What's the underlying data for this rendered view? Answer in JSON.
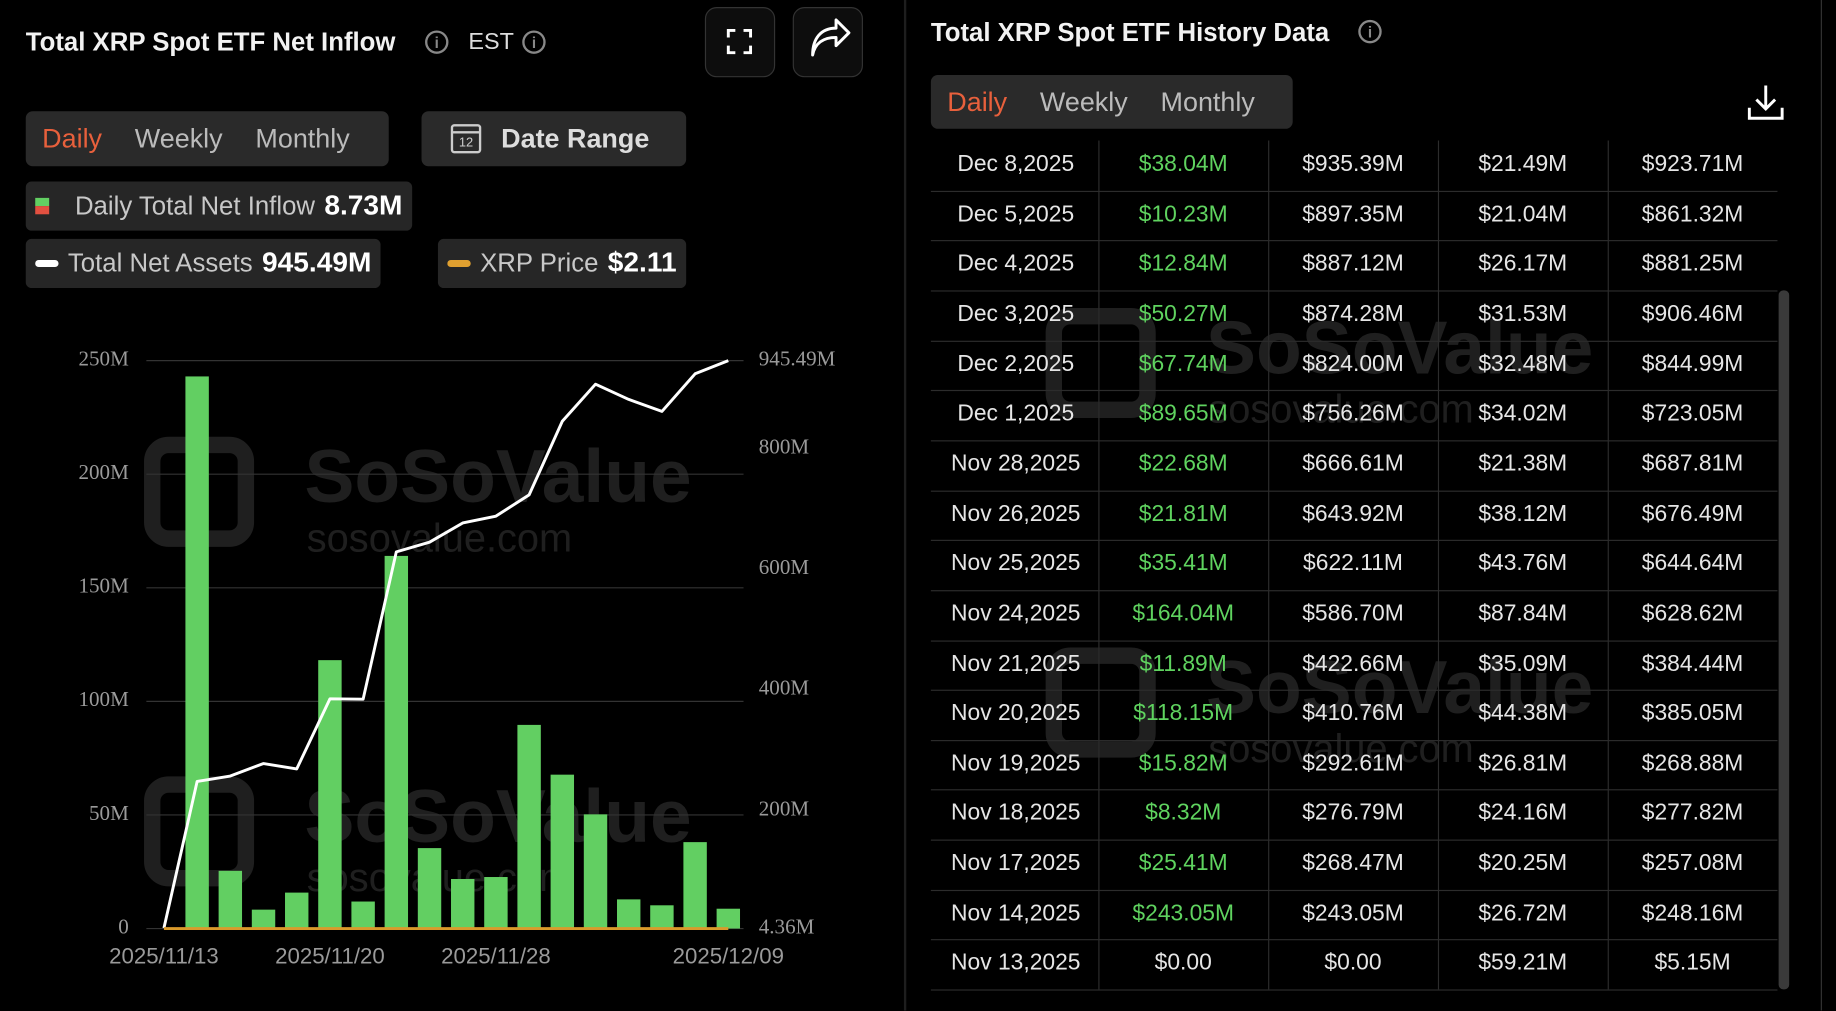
{
  "header": {
    "title": "Total XRP Spot ETF Net Inflow",
    "timezone": "EST",
    "tabs": [
      "Daily",
      "Weekly",
      "Monthly"
    ],
    "date_range": "Date Range"
  },
  "legend": {
    "inflow_value": "8.73M",
    "assets_value": "945.49M",
    "price_name": "XRP Price",
    "price_value": "$2.11"
  },
  "watermark": {
    "brand": "SoSoValue",
    "url": "sosovalue.com"
  },
  "chart_data": {
    "type": "bar",
    "categories": [
      "2025/11/13",
      null,
      null,
      null,
      null,
      "2025/11/20",
      null,
      null,
      null,
      null,
      "2025/11/28",
      null,
      null,
      null,
      null,
      null,
      null,
      "2025/12/09"
    ],
    "series": [
      {
        "name": "Daily Total Net Inflow",
        "color": "#62cf62",
        "values": [
          0,
          243.05,
          25.41,
          8.32,
          15.82,
          118.15,
          11.89,
          164.04,
          35.41,
          21.81,
          22.68,
          89.65,
          67.74,
          50.27,
          12.84,
          10.23,
          38.04,
          8.73
        ]
      },
      {
        "name": "Total Net Assets",
        "color": "#ffffff",
        "type": "line",
        "axis": "y2",
        "values": [
          5.15,
          248.16,
          257.08,
          277.82,
          268.88,
          385.05,
          384.44,
          628.62,
          644.64,
          676.49,
          687.81,
          723.05,
          844.99,
          906.46,
          881.25,
          861.32,
          923.71,
          945.49
        ]
      }
    ],
    "ylim": [
      0,
      250
    ],
    "yticks": [
      0,
      {
        "value": 50,
        "label": "50M"
      },
      {
        "value": 100,
        "label": "100M"
      },
      {
        "value": 150,
        "label": "150M"
      },
      {
        "value": 200,
        "label": "200M"
      },
      {
        "value": 250,
        "label": "250M"
      }
    ],
    "y2lim": [
      4.36,
      945.49
    ],
    "y2ticks": [
      {
        "value": 4.36,
        "label": "4.36M"
      },
      {
        "value": 200,
        "label": "200M"
      },
      {
        "value": 400,
        "label": "400M"
      },
      {
        "value": 600,
        "label": "600M"
      },
      {
        "value": 800,
        "label": "800M"
      },
      {
        "value": 945.49,
        "label": "945.49M"
      }
    ],
    "grid": true
  },
  "history": {
    "title": "Total XRP Spot ETF History Data",
    "tabs": [
      "Daily",
      "Weekly",
      "Monthly"
    ],
    "rows": [
      [
        "Dec 8,2025",
        "$38.04M",
        "$935.39M",
        "$21.49M",
        "$923.71M"
      ],
      [
        "Dec 5,2025",
        "$10.23M",
        "$897.35M",
        "$21.04M",
        "$861.32M"
      ],
      [
        "Dec 4,2025",
        "$12.84M",
        "$887.12M",
        "$26.17M",
        "$881.25M"
      ],
      [
        "Dec 3,2025",
        "$50.27M",
        "$874.28M",
        "$31.53M",
        "$906.46M"
      ],
      [
        "Dec 2,2025",
        "$67.74M",
        "$824.00M",
        "$32.48M",
        "$844.99M"
      ],
      [
        "Dec 1,2025",
        "$89.65M",
        "$756.26M",
        "$34.02M",
        "$723.05M"
      ],
      [
        "Nov 28,2025",
        "$22.68M",
        "$666.61M",
        "$21.38M",
        "$687.81M"
      ],
      [
        "Nov 26,2025",
        "$21.81M",
        "$643.92M",
        "$38.12M",
        "$676.49M"
      ],
      [
        "Nov 25,2025",
        "$35.41M",
        "$622.11M",
        "$43.76M",
        "$644.64M"
      ],
      [
        "Nov 24,2025",
        "$164.04M",
        "$586.70M",
        "$87.84M",
        "$628.62M"
      ],
      [
        "Nov 21,2025",
        "$11.89M",
        "$422.66M",
        "$35.09M",
        "$384.44M"
      ],
      [
        "Nov 20,2025",
        "$118.15M",
        "$410.76M",
        "$44.38M",
        "$385.05M"
      ],
      [
        "Nov 19,2025",
        "$15.82M",
        "$292.61M",
        "$26.81M",
        "$268.88M"
      ],
      [
        "Nov 18,2025",
        "$8.32M",
        "$276.79M",
        "$24.16M",
        "$277.82M"
      ],
      [
        "Nov 17,2025",
        "$25.41M",
        "$268.47M",
        "$20.25M",
        "$257.08M"
      ],
      [
        "Nov 14,2025",
        "$243.05M",
        "$243.05M",
        "$26.72M",
        "$248.16M"
      ],
      [
        "Nov 13,2025",
        "$0.00",
        "$0.00",
        "$59.21M",
        "$5.15M"
      ]
    ]
  }
}
